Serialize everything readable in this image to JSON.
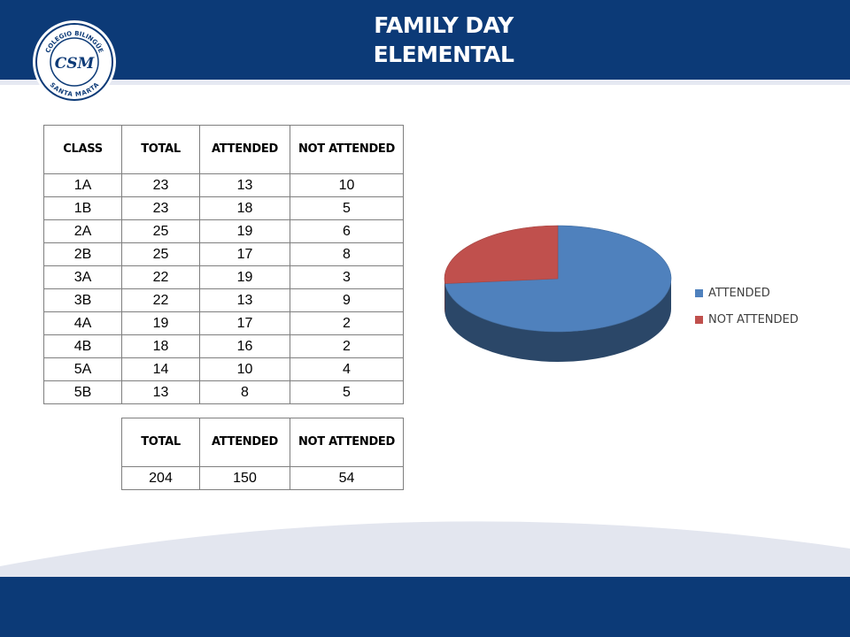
{
  "slide": {
    "title_line1": "FAMILY DAY",
    "title_line2": "ELEMENTAL",
    "logo": {
      "icon": "school-crest-logo",
      "top_text": "COLEGIO BILINGÜE",
      "bottom_text": "SANTA MARTA",
      "monogram": "CSM"
    }
  },
  "class_table": {
    "headers": [
      "CLASS",
      "TOTAL",
      "ATTENDED",
      "NOT ATTENDED"
    ],
    "rows": [
      [
        "1A",
        "23",
        "13",
        "10"
      ],
      [
        "1B",
        "23",
        "18",
        "5"
      ],
      [
        "2A",
        "25",
        "19",
        "6"
      ],
      [
        "2B",
        "25",
        "17",
        "8"
      ],
      [
        "3A",
        "22",
        "19",
        "3"
      ],
      [
        "3B",
        "22",
        "13",
        "9"
      ],
      [
        "4A",
        "19",
        "17",
        "2"
      ],
      [
        "4B",
        "18",
        "16",
        "2"
      ],
      [
        "5A",
        "14",
        "10",
        "4"
      ],
      [
        "5B",
        "13",
        "8",
        "5"
      ]
    ]
  },
  "totals_table": {
    "headers": [
      "TOTAL",
      "ATTENDED",
      "NOT ATTENDED"
    ],
    "row": [
      "204",
      "150",
      "54"
    ]
  },
  "chart_data": {
    "type": "pie",
    "style": "3d",
    "categories": [
      "ATTENDED",
      "NOT ATTENDED"
    ],
    "values": [
      150,
      54
    ],
    "colors": [
      "#4f81bd",
      "#c0504d"
    ],
    "legend_position": "right"
  }
}
